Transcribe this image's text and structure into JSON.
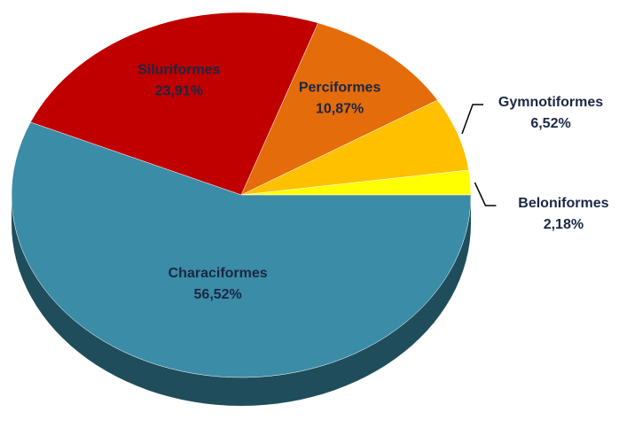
{
  "chart_data": {
    "type": "pie",
    "categories": [
      "Beloniformes",
      "Gymnotiformes",
      "Perciformes",
      "Siluriformes",
      "Characiformes"
    ],
    "values": [
      2.18,
      6.52,
      10.87,
      23.91,
      56.52
    ],
    "value_labels": [
      "2,18%",
      "6,52%",
      "10,87%",
      "23,91%",
      "56,52%"
    ],
    "colors": [
      "#ffff00",
      "#ffc000",
      "#e46c0a",
      "#c00000",
      "#3b8ca6"
    ]
  }
}
